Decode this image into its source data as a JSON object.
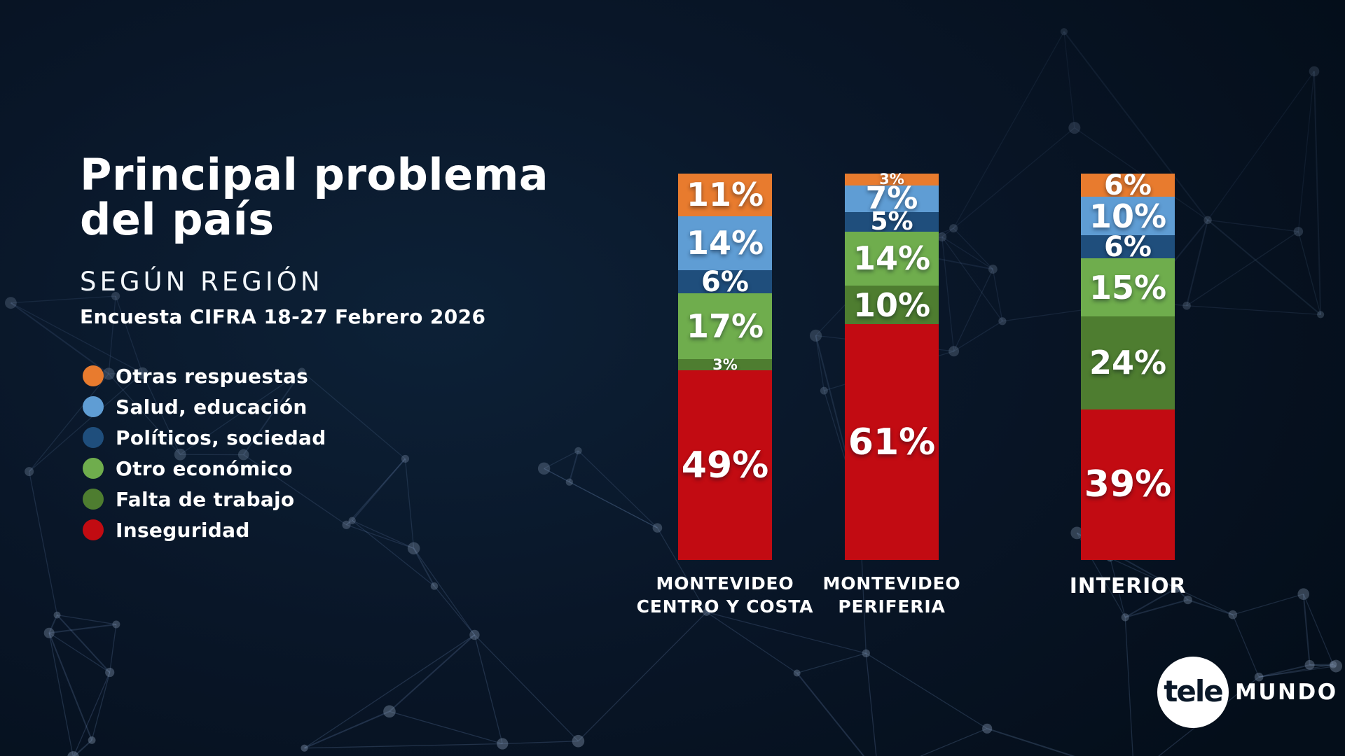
{
  "header": {
    "title_line1": "Principal problema",
    "title_line2": "del país",
    "subtitle": "SEGÚN REGIÓN",
    "source": "Encuesta CIFRA 18-27 Febrero 2026"
  },
  "chart_data": {
    "type": "bar",
    "stacked": true,
    "percent_stacked": true,
    "unit": "%",
    "title": "Principal problema del país",
    "subtitle": "SEGÚN REGIÓN",
    "source": "Encuesta CIFRA 18-27 Febrero 2026",
    "xlabel": "",
    "ylabel": "",
    "ylim": [
      0,
      100
    ],
    "grid": false,
    "legend_position": "left",
    "value_labels": true,
    "categories": [
      "MONTEVIDEO\nCENTRO Y COSTA",
      "MONTEVIDEO\nPERIFERIA",
      "INTERIOR"
    ],
    "series": [
      {
        "name": "Otras respuestas",
        "color": "#E87B2E",
        "values": [
          11,
          3,
          6
        ]
      },
      {
        "name": "Salud, educación",
        "color": "#5F9DD4",
        "values": [
          14,
          7,
          10
        ]
      },
      {
        "name": "Políticos, sociedad",
        "color": "#1F4E7C",
        "values": [
          6,
          5,
          6
        ]
      },
      {
        "name": "Otro económico",
        "color": "#6FAD4D",
        "values": [
          17,
          14,
          15
        ]
      },
      {
        "name": "Falta de trabajo",
        "color": "#4E7D30",
        "values": [
          3,
          10,
          24
        ]
      },
      {
        "name": "Inseguridad",
        "color": "#C20B12",
        "values": [
          49,
          61,
          39
        ]
      }
    ]
  },
  "branding": {
    "circle_text": "tele",
    "word_text": "MUNDO"
  },
  "colors": {
    "background": "#081627",
    "text": "#FFFFFF"
  }
}
